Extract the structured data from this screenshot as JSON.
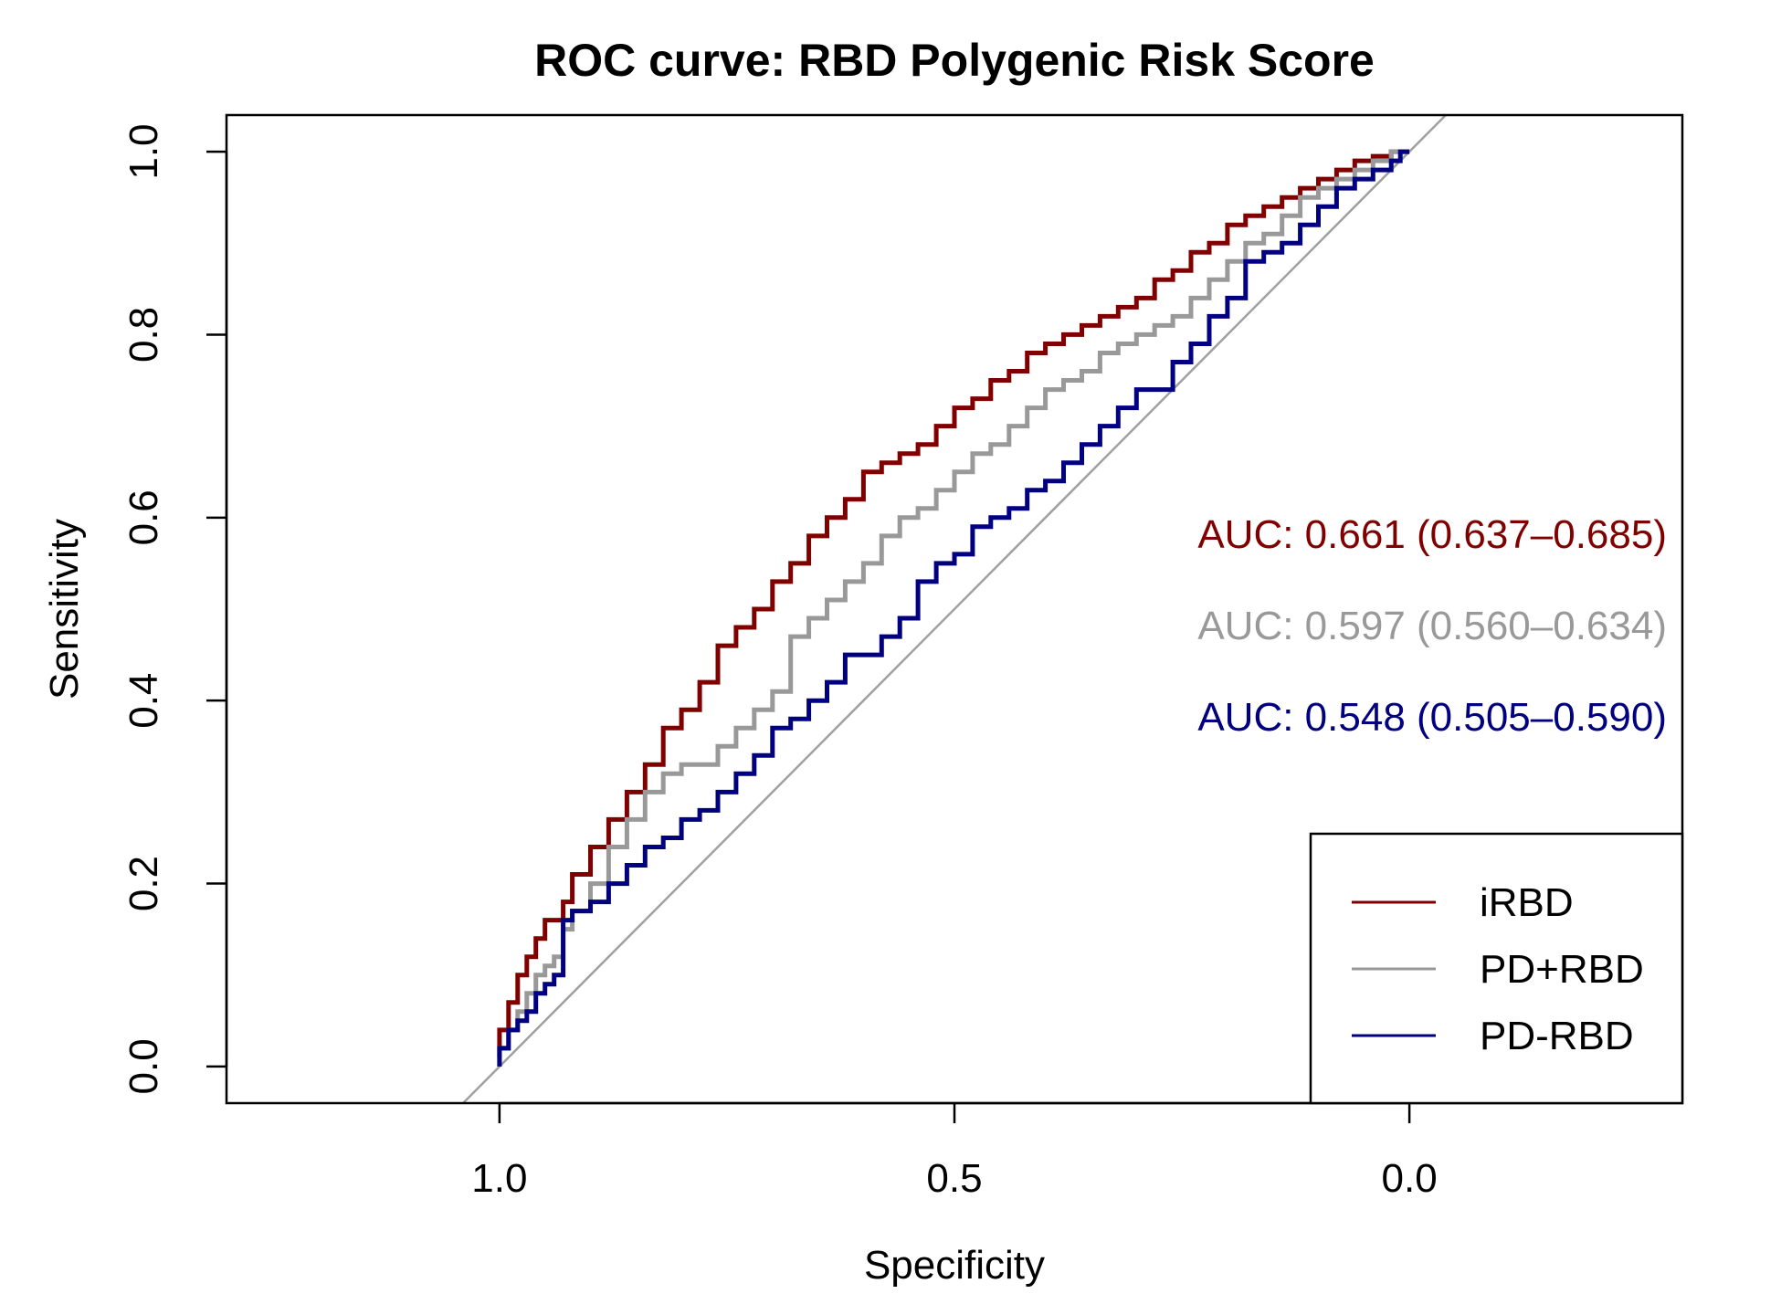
{
  "chart_data": {
    "type": "line",
    "title": "ROC curve: RBD Polygenic Risk Score",
    "xlabel": "Specificity",
    "ylabel": "Sensitivity",
    "xlim": [
      1.3,
      -0.3
    ],
    "ylim": [
      -0.04,
      1.04
    ],
    "x_ticks": [
      1.0,
      0.5,
      0.0
    ],
    "x_tick_labels": [
      "1.0",
      "0.5",
      "0.0"
    ],
    "y_ticks": [
      0.0,
      0.2,
      0.4,
      0.6,
      0.8,
      1.0
    ],
    "y_tick_labels": [
      "0.0",
      "0.2",
      "0.4",
      "0.6",
      "0.8",
      "1.0"
    ],
    "grid": false,
    "legend_position": "bottom-right",
    "reference_line": {
      "from": [
        1.0,
        0.0
      ],
      "to": [
        0.0,
        1.0
      ],
      "color": "#a0a0a0"
    },
    "annotations": [
      {
        "text": "AUC: 0.661 (0.637–0.685)",
        "color": "#800000"
      },
      {
        "text": "AUC: 0.597 (0.560–0.634)",
        "color": "#999999"
      },
      {
        "text": "AUC: 0.548 (0.505–0.590)",
        "color": "#000080"
      }
    ],
    "series": [
      {
        "name": "iRBD",
        "color": "#800000",
        "specificity": [
          1.0,
          0.99,
          0.98,
          0.97,
          0.96,
          0.95,
          0.93,
          0.92,
          0.9,
          0.88,
          0.86,
          0.84,
          0.82,
          0.8,
          0.78,
          0.76,
          0.74,
          0.72,
          0.7,
          0.68,
          0.66,
          0.64,
          0.62,
          0.6,
          0.58,
          0.56,
          0.54,
          0.52,
          0.5,
          0.48,
          0.46,
          0.44,
          0.42,
          0.4,
          0.38,
          0.36,
          0.34,
          0.32,
          0.3,
          0.28,
          0.26,
          0.24,
          0.22,
          0.2,
          0.18,
          0.16,
          0.14,
          0.12,
          0.1,
          0.08,
          0.06,
          0.04,
          0.02,
          0.0
        ],
        "sensitivity": [
          0.01,
          0.04,
          0.07,
          0.1,
          0.12,
          0.14,
          0.16,
          0.18,
          0.21,
          0.24,
          0.27,
          0.3,
          0.33,
          0.37,
          0.39,
          0.42,
          0.46,
          0.48,
          0.5,
          0.53,
          0.55,
          0.58,
          0.6,
          0.62,
          0.65,
          0.66,
          0.67,
          0.68,
          0.7,
          0.72,
          0.73,
          0.75,
          0.76,
          0.78,
          0.79,
          0.8,
          0.81,
          0.82,
          0.83,
          0.84,
          0.86,
          0.87,
          0.89,
          0.9,
          0.92,
          0.93,
          0.94,
          0.95,
          0.96,
          0.97,
          0.98,
          0.99,
          0.995,
          1.0
        ]
      },
      {
        "name": "PD+RBD",
        "color": "#999999",
        "specificity": [
          1.0,
          0.99,
          0.98,
          0.97,
          0.96,
          0.95,
          0.94,
          0.93,
          0.92,
          0.9,
          0.88,
          0.86,
          0.84,
          0.82,
          0.8,
          0.78,
          0.76,
          0.74,
          0.72,
          0.7,
          0.68,
          0.66,
          0.64,
          0.62,
          0.6,
          0.58,
          0.56,
          0.54,
          0.52,
          0.5,
          0.48,
          0.46,
          0.44,
          0.42,
          0.4,
          0.38,
          0.36,
          0.34,
          0.32,
          0.3,
          0.28,
          0.26,
          0.24,
          0.22,
          0.2,
          0.18,
          0.16,
          0.14,
          0.12,
          0.1,
          0.08,
          0.06,
          0.04,
          0.02,
          0.0
        ],
        "sensitivity": [
          0.0,
          0.02,
          0.04,
          0.06,
          0.08,
          0.1,
          0.11,
          0.12,
          0.15,
          0.17,
          0.2,
          0.24,
          0.27,
          0.3,
          0.32,
          0.33,
          0.33,
          0.35,
          0.37,
          0.39,
          0.41,
          0.47,
          0.49,
          0.51,
          0.53,
          0.55,
          0.58,
          0.6,
          0.61,
          0.63,
          0.65,
          0.67,
          0.68,
          0.7,
          0.72,
          0.74,
          0.75,
          0.76,
          0.78,
          0.79,
          0.8,
          0.81,
          0.82,
          0.84,
          0.86,
          0.88,
          0.9,
          0.91,
          0.93,
          0.95,
          0.96,
          0.97,
          0.98,
          0.99,
          1.0
        ]
      },
      {
        "name": "PD-RBD",
        "color": "#000080",
        "specificity": [
          1.0,
          0.99,
          0.98,
          0.97,
          0.96,
          0.95,
          0.94,
          0.93,
          0.92,
          0.9,
          0.88,
          0.86,
          0.84,
          0.82,
          0.8,
          0.78,
          0.76,
          0.74,
          0.72,
          0.7,
          0.68,
          0.66,
          0.64,
          0.62,
          0.6,
          0.58,
          0.56,
          0.54,
          0.52,
          0.5,
          0.48,
          0.46,
          0.44,
          0.42,
          0.4,
          0.38,
          0.36,
          0.34,
          0.32,
          0.3,
          0.28,
          0.26,
          0.24,
          0.22,
          0.2,
          0.18,
          0.16,
          0.14,
          0.12,
          0.1,
          0.08,
          0.06,
          0.04,
          0.02,
          0.01,
          0.0
        ],
        "sensitivity": [
          0.0,
          0.02,
          0.04,
          0.05,
          0.06,
          0.08,
          0.09,
          0.1,
          0.16,
          0.17,
          0.18,
          0.2,
          0.22,
          0.24,
          0.25,
          0.27,
          0.28,
          0.3,
          0.32,
          0.34,
          0.37,
          0.38,
          0.4,
          0.42,
          0.45,
          0.45,
          0.47,
          0.49,
          0.53,
          0.55,
          0.56,
          0.59,
          0.6,
          0.61,
          0.63,
          0.64,
          0.66,
          0.68,
          0.7,
          0.72,
          0.74,
          0.74,
          0.77,
          0.79,
          0.82,
          0.84,
          0.88,
          0.89,
          0.9,
          0.92,
          0.94,
          0.96,
          0.97,
          0.98,
          0.99,
          1.0
        ]
      }
    ]
  }
}
